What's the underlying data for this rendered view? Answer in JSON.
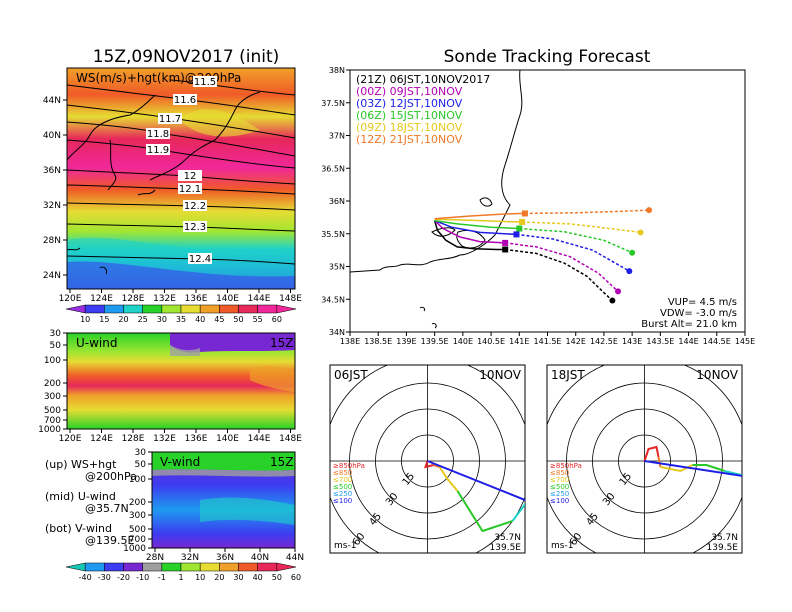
{
  "colors": {
    "ws_scale": [
      "#9b2de0",
      "#3c3cf0",
      "#1e9bf0",
      "#1ed2c8",
      "#28d228",
      "#a0e632",
      "#e6dc32",
      "#f0a028",
      "#f05a28",
      "#e6285a",
      "#f0289b"
    ],
    "uv_scale": [
      "#14c8b4",
      "#1e9bf0",
      "#3c3cf0",
      "#7828d2",
      "#a0a0a0",
      "#28d228",
      "#a0e632",
      "#e6dc32",
      "#f0a028",
      "#f05a28",
      "#e6285a"
    ],
    "track_21z": "#000000",
    "track_00z": "#b400b4",
    "track_03z": "#1e1ee6",
    "track_06z": "#28c828",
    "track_09z": "#e6c81e",
    "track_12z": "#f07828"
  },
  "top_map": {
    "title": "15Z,09NOV2017 (init)",
    "overlay_label": "WS(m/s)+hgt(km)@200hPa",
    "contour_labels": [
      "11.5",
      "11.6",
      "11.7",
      "11.8",
      "11.9",
      "12",
      "12.1",
      "12.2",
      "12.3",
      "12.4"
    ],
    "x_ticks": [
      "120E",
      "124E",
      "128E",
      "132E",
      "136E",
      "140E",
      "144E",
      "148E"
    ],
    "y_ticks": [
      "44N",
      "40N",
      "36N",
      "32N",
      "28N",
      "24N"
    ],
    "colorbar_labels": [
      "10",
      "15",
      "20",
      "25",
      "30",
      "35",
      "40",
      "45",
      "50",
      "55",
      "60"
    ]
  },
  "uwind_panel": {
    "label": "U-wind",
    "time": "15Z",
    "y_ticks": [
      "30",
      "50",
      "100",
      "200",
      "300",
      "500",
      "700",
      "1000"
    ],
    "x_ticks": [
      "120E",
      "124E",
      "128E",
      "132E",
      "136E",
      "140E",
      "144E",
      "148E"
    ]
  },
  "vwind_panel": {
    "label": "V-wind",
    "time": "15Z",
    "y_ticks": [
      "30",
      "50",
      "100",
      "200",
      "300",
      "500",
      "700",
      "1000"
    ],
    "x_ticks": [
      "28N",
      "32N",
      "36N",
      "40N",
      "44N"
    ],
    "colorbar_labels": [
      "-40",
      "-30",
      "-20",
      "-10",
      "-1",
      "1",
      "10",
      "20",
      "30",
      "40",
      "50",
      "60"
    ]
  },
  "legend_text": {
    "up_line1": "(up) WS+hgt",
    "up_line2": "@200hPa",
    "mid_line1": "(mid) U-wind",
    "mid_line2": "@35.7N",
    "bot_line1": "(bot) V-wind",
    "bot_line2": "@139.5E"
  },
  "chart_data": [
    {
      "type": "line",
      "title": "Sonde Tracking Forecast",
      "xlim": [
        138,
        145
      ],
      "ylim": [
        34,
        38
      ],
      "x_ticks": [
        "138E",
        "138.5E",
        "139E",
        "139.5E",
        "140E",
        "140.5E",
        "141E",
        "141.5E",
        "142E",
        "142.5E",
        "143E",
        "143.5E",
        "144E",
        "144.5E",
        "145E"
      ],
      "y_ticks": [
        "38N",
        "37.5N",
        "37N",
        "36.5N",
        "36N",
        "35.5N",
        "35N",
        "34.5N",
        "34N"
      ],
      "launch": {
        "lon": 139.5,
        "lat": 35.7
      },
      "series": [
        {
          "name": "(21Z)  06JST,10NOV2017",
          "color": "#000000",
          "ascent": [
            [
              139.5,
              35.7
            ],
            [
              139.55,
              35.55
            ],
            [
              139.7,
              35.4
            ],
            [
              139.9,
              35.3
            ],
            [
              140.2,
              35.27
            ],
            [
              140.6,
              35.26
            ],
            [
              140.75,
              35.26
            ]
          ],
          "descent": [
            [
              140.75,
              35.26
            ],
            [
              141.3,
              35.2
            ],
            [
              141.8,
              35.05
            ],
            [
              142.2,
              34.85
            ],
            [
              142.5,
              34.6
            ],
            [
              142.65,
              34.48
            ]
          ],
          "burst": [
            140.75,
            35.26
          ],
          "land": [
            142.65,
            34.48
          ]
        },
        {
          "name": "(00Z)  09JST,10NOV",
          "color": "#b400b4",
          "ascent": [
            [
              139.5,
              35.7
            ],
            [
              139.65,
              35.58
            ],
            [
              139.95,
              35.45
            ],
            [
              140.3,
              35.38
            ],
            [
              140.75,
              35.36
            ]
          ],
          "descent": [
            [
              140.75,
              35.36
            ],
            [
              141.3,
              35.3
            ],
            [
              141.9,
              35.15
            ],
            [
              142.4,
              34.9
            ],
            [
              142.75,
              34.62
            ]
          ],
          "burst": [
            140.75,
            35.36
          ],
          "land": [
            142.75,
            34.62
          ]
        },
        {
          "name": "(03Z)  12JST,10NOV",
          "color": "#1e1ee6",
          "ascent": [
            [
              139.5,
              35.7
            ],
            [
              139.8,
              35.6
            ],
            [
              140.3,
              35.52
            ],
            [
              140.95,
              35.49
            ]
          ],
          "descent": [
            [
              140.95,
              35.49
            ],
            [
              141.6,
              35.42
            ],
            [
              142.3,
              35.25
            ],
            [
              142.95,
              34.93
            ]
          ],
          "burst": [
            140.95,
            35.49
          ],
          "land": [
            142.95,
            34.93
          ]
        },
        {
          "name": "(06Z)  15JST,10NOV",
          "color": "#28c828",
          "ascent": [
            [
              139.5,
              35.7
            ],
            [
              139.9,
              35.65
            ],
            [
              140.5,
              35.6
            ],
            [
              141.0,
              35.58
            ]
          ],
          "descent": [
            [
              141.0,
              35.58
            ],
            [
              141.8,
              35.53
            ],
            [
              142.5,
              35.4
            ],
            [
              143.0,
              35.21
            ]
          ],
          "burst": [
            141.0,
            35.58
          ],
          "land": [
            143.0,
            35.21
          ]
        },
        {
          "name": "(09Z)  18JST,10NOV",
          "color": "#e6c81e",
          "ascent": [
            [
              139.5,
              35.72
            ],
            [
              140.0,
              35.71
            ],
            [
              140.6,
              35.69
            ],
            [
              141.05,
              35.68
            ]
          ],
          "descent": [
            [
              141.05,
              35.68
            ],
            [
              141.9,
              35.65
            ],
            [
              142.6,
              35.58
            ],
            [
              143.15,
              35.52
            ]
          ],
          "burst": [
            141.05,
            35.68
          ],
          "land": [
            143.15,
            35.52
          ]
        },
        {
          "name": "(12Z)  21JST,10NOV",
          "color": "#f07828",
          "ascent": [
            [
              139.5,
              35.73
            ],
            [
              140.1,
              35.77
            ],
            [
              140.7,
              35.8
            ],
            [
              141.1,
              35.81
            ]
          ],
          "descent": [
            [
              141.1,
              35.81
            ],
            [
              142.0,
              35.82
            ],
            [
              142.7,
              35.84
            ],
            [
              143.3,
              35.86
            ]
          ],
          "burst": [
            141.1,
            35.81
          ],
          "land": [
            143.3,
            35.86
          ]
        }
      ],
      "annotations": [
        "VUP= 4.5 m/s",
        "VDW= -3.0 m/s",
        "Burst Alt= 21.0 km"
      ]
    },
    {
      "type": "line",
      "title": "06JST 10NOV hodograph",
      "label_time": "06JST",
      "label_date": "10NOV",
      "ring_labels": [
        "15",
        "30",
        "45",
        "60"
      ],
      "level_legend": [
        "≥850hPa",
        "≤850",
        "≤700",
        "≤500",
        "≤250",
        "≤100"
      ],
      "level_colors": [
        "#e62828",
        "#f07828",
        "#e6c81e",
        "#28c828",
        "#1e9bf0",
        "#1e1ee6"
      ],
      "units": "ms-1",
      "loc_lat": "35.7N",
      "loc_lon": "139.5E"
    },
    {
      "type": "line",
      "title": "18JST 10NOV hodograph",
      "label_time": "18JST",
      "label_date": "10NOV",
      "ring_labels": [
        "15",
        "30",
        "45",
        "60"
      ],
      "level_legend": [
        "≥850hPa",
        "≤850",
        "≤700",
        "≤500",
        "≤250",
        "≤100"
      ],
      "level_colors": [
        "#e62828",
        "#f07828",
        "#e6c81e",
        "#28c828",
        "#1e9bf0",
        "#1e1ee6"
      ],
      "units": "ms-1",
      "loc_lat": "35.7N",
      "loc_lon": "139.5E"
    }
  ]
}
